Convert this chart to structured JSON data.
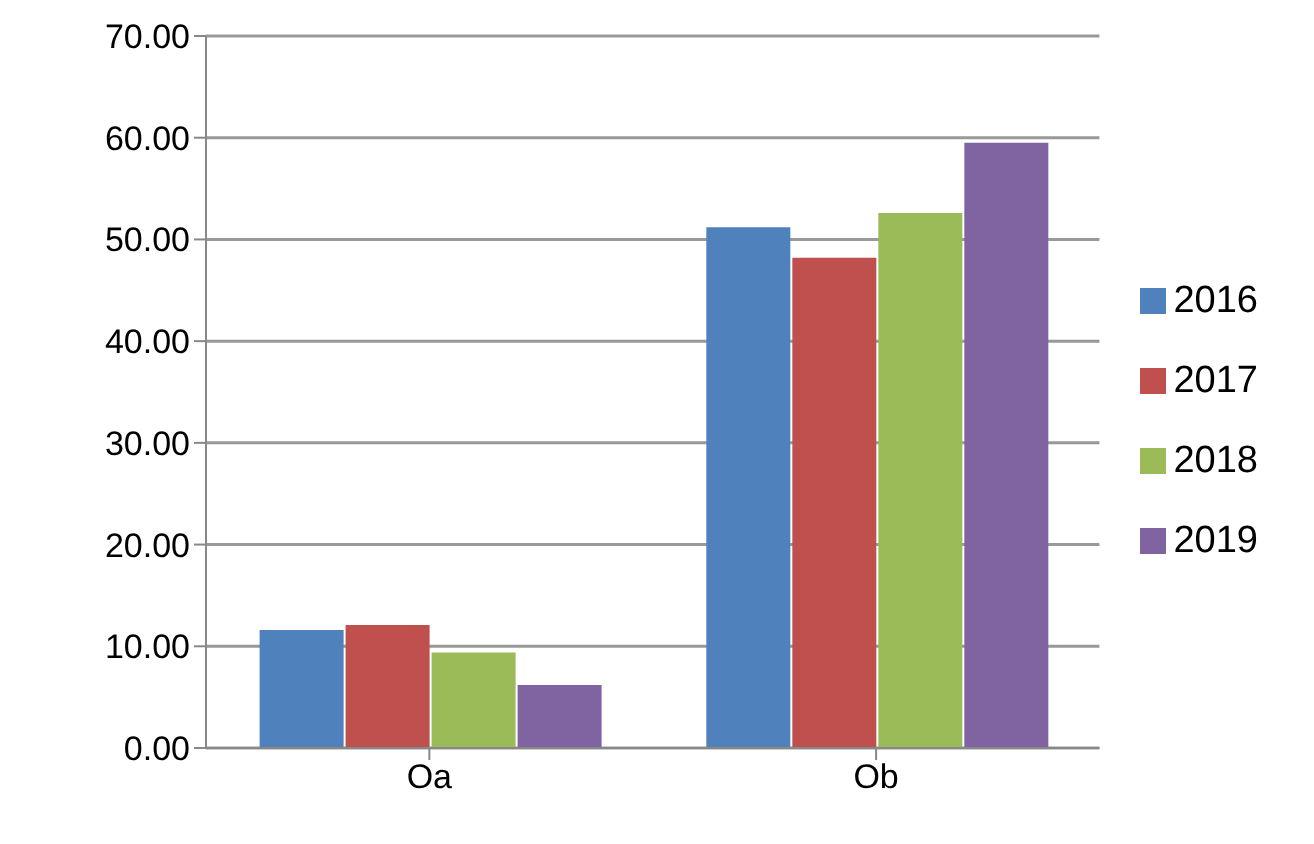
{
  "chart_data": {
    "type": "bar",
    "categories": [
      "Oa",
      "Ob"
    ],
    "series": [
      {
        "name": "2016",
        "color": "#4f81bd",
        "values": [
          11.6,
          51.2
        ]
      },
      {
        "name": "2017",
        "color": "#c0504d",
        "values": [
          12.1,
          48.2
        ]
      },
      {
        "name": "2018",
        "color": "#9bbb59",
        "values": [
          9.4,
          52.6
        ]
      },
      {
        "name": "2019",
        "color": "#8064a2",
        "values": [
          6.2,
          59.5
        ]
      }
    ],
    "ylim": [
      0,
      70
    ],
    "yticks": [
      {
        "value": 0,
        "label": "0.00"
      },
      {
        "value": 10,
        "label": "10.00"
      },
      {
        "value": 20,
        "label": "20.00"
      },
      {
        "value": 30,
        "label": "30.00"
      },
      {
        "value": 40,
        "label": "40.00"
      },
      {
        "value": 50,
        "label": "50.00"
      },
      {
        "value": 60,
        "label": "60.00"
      },
      {
        "value": 70,
        "label": "70.00"
      }
    ],
    "grid": "y",
    "legend": "right"
  }
}
